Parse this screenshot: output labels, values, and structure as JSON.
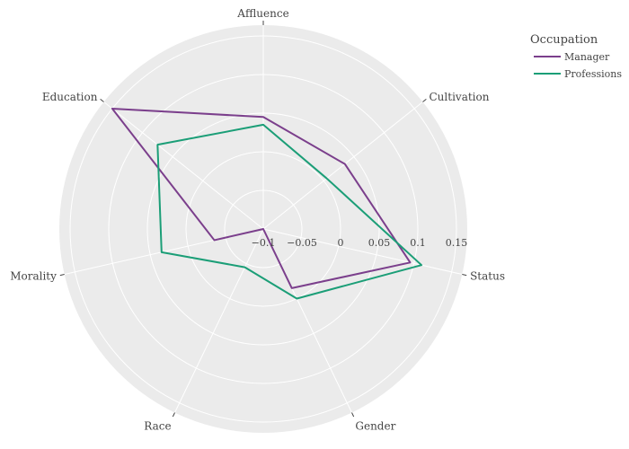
{
  "chart_data": {
    "type": "radar",
    "categories": [
      "Affluence",
      "Cultivation",
      "Status",
      "Gender",
      "Race",
      "Morality",
      "Education"
    ],
    "radial_ticks": [
      -0.1,
      -0.05,
      0,
      0.05,
      0.1,
      0.15
    ],
    "radial_tick_labels": [
      "−0.1",
      "−0.05",
      "0",
      "0.05",
      "0.1",
      "0.15"
    ],
    "rlim": [
      -0.1,
      0.15
    ],
    "grid": true,
    "legend_position": "top-right",
    "legend_title": "Occupation",
    "series": [
      {
        "name": "Manager",
        "color": "#7b3f8c",
        "values": [
          0.045,
          0.035,
          0.095,
          -0.015,
          -0.1,
          -0.035,
          0.15
        ]
      },
      {
        "name": "Professions",
        "color": "#1b9e77",
        "values": [
          0.035,
          0.005,
          0.11,
          0.0,
          -0.045,
          0.035,
          0.075
        ]
      }
    ]
  }
}
